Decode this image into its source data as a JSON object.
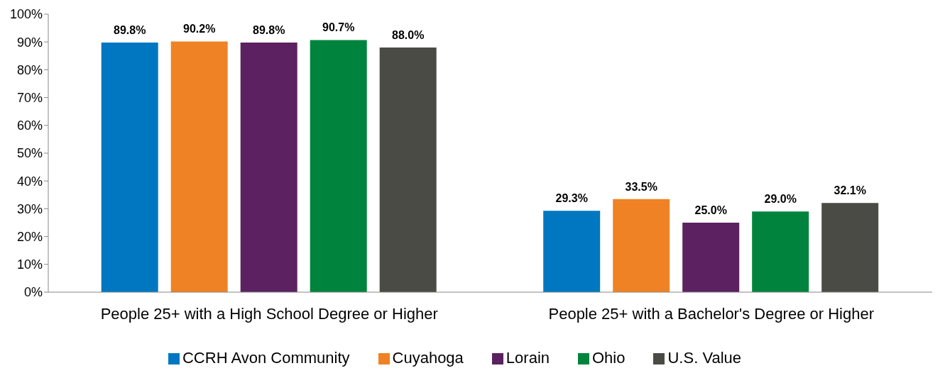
{
  "chart_data": {
    "type": "bar",
    "categories": [
      "People 25+ with a High School Degree or Higher",
      "People 25+ with a Bachelor's Degree or Higher"
    ],
    "series": [
      {
        "name": "CCRH Avon Community",
        "color": "#0077c0",
        "values": [
          89.8,
          29.3
        ],
        "value_labels": [
          "89.8%",
          "29.3%"
        ]
      },
      {
        "name": "Cuyahoga",
        "color": "#ef8224",
        "values": [
          90.2,
          33.5
        ],
        "value_labels": [
          "90.2%",
          "33.5%"
        ]
      },
      {
        "name": "Lorain",
        "color": "#5c2160",
        "values": [
          89.8,
          25.0
        ],
        "value_labels": [
          "89.8%",
          "25.0%"
        ]
      },
      {
        "name": "Ohio",
        "color": "#00843d",
        "values": [
          90.7,
          29.0
        ],
        "value_labels": [
          "90.7%",
          "29.0%"
        ]
      },
      {
        "name": "U.S. Value",
        "color": "#4a4b45",
        "values": [
          88.0,
          32.1
        ],
        "value_labels": [
          "88.0%",
          "32.1%"
        ]
      }
    ],
    "ylim": [
      0,
      100
    ],
    "yticks": [
      {
        "value": 0,
        "label": "0%"
      },
      {
        "value": 10,
        "label": "10%"
      },
      {
        "value": 20,
        "label": "20%"
      },
      {
        "value": 30,
        "label": "30%"
      },
      {
        "value": 40,
        "label": "40%"
      },
      {
        "value": 50,
        "label": "50%"
      },
      {
        "value": 60,
        "label": "60%"
      },
      {
        "value": 70,
        "label": "70%"
      },
      {
        "value": 80,
        "label": "80%"
      },
      {
        "value": 90,
        "label": "90%"
      },
      {
        "value": 100,
        "label": "100%"
      }
    ],
    "grid": false,
    "legend": "bottom"
  }
}
